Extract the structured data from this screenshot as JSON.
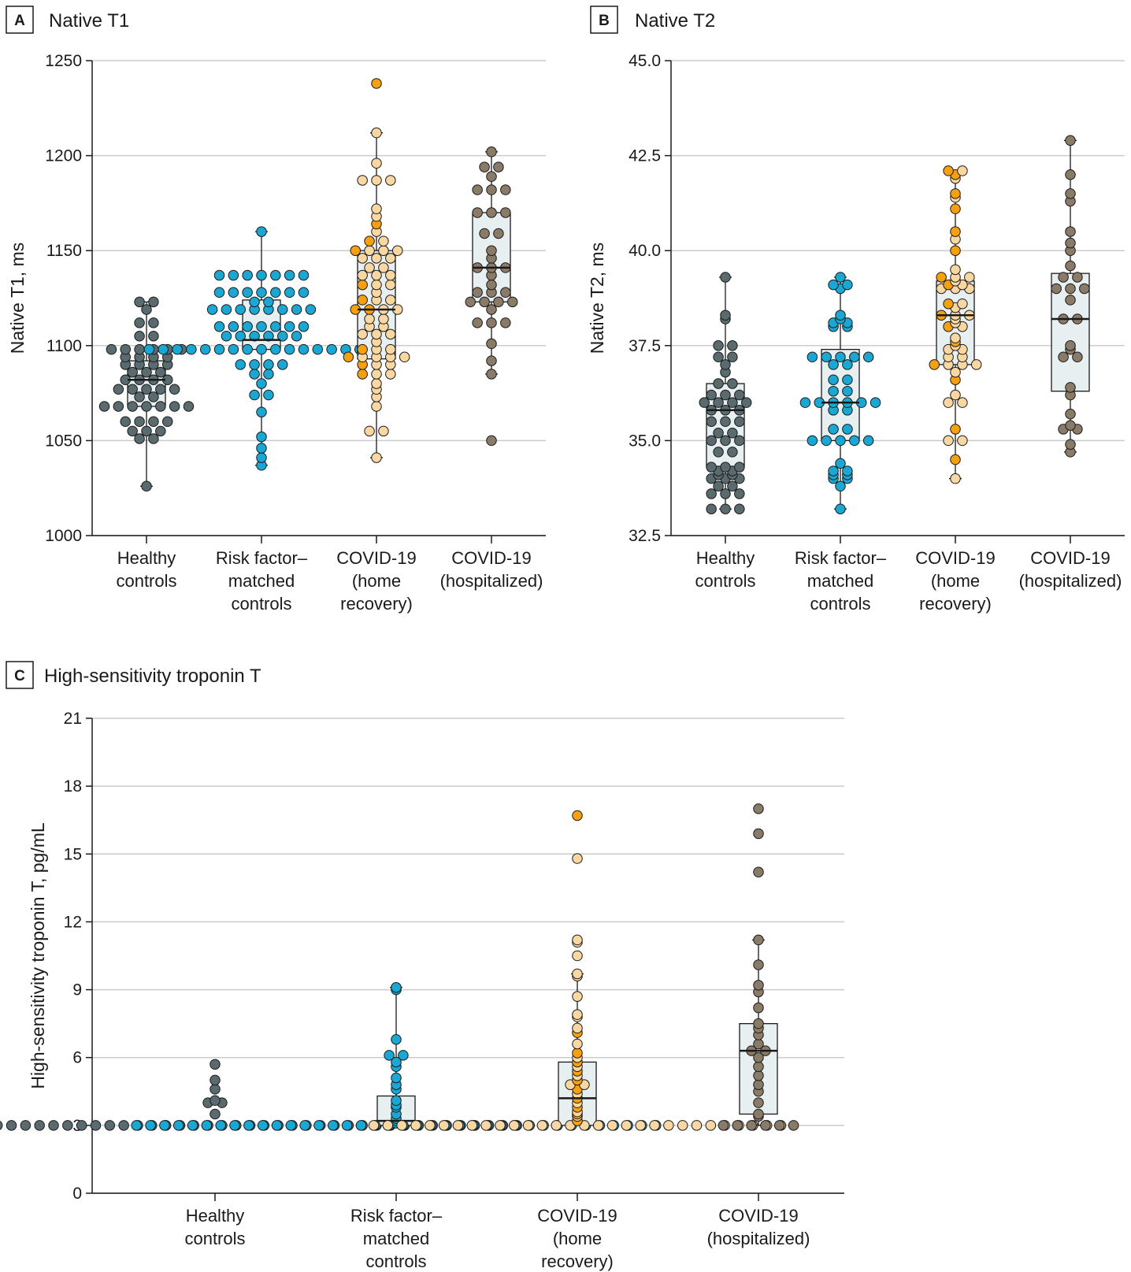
{
  "figure": {
    "colors": {
      "healthy": "#5a6b70",
      "risk": "#1aa7d4",
      "home_dark": "#f5a00f",
      "home_light": "#f8d7a2",
      "hospital": "#8a7a68",
      "box_fill": "#e7eff1",
      "grid": "#cccccc"
    }
  },
  "chart_data": [
    {
      "id": "A",
      "type": "box-dot",
      "letter": "A",
      "title": "Native T1",
      "xlabel": "",
      "ylabel": "Native T1, ms",
      "ylim": [
        1000,
        1250
      ],
      "yticks": [
        1000,
        1050,
        1100,
        1150,
        1200,
        1250
      ],
      "ytick_labels": [
        "1000",
        "1050",
        "1100",
        "1150",
        "1200",
        "1250"
      ],
      "grid": true,
      "categories": [
        {
          "lines": [
            "Healthy",
            "controls"
          ]
        },
        {
          "lines": [
            "Risk factor–",
            "matched",
            "controls"
          ]
        },
        {
          "lines": [
            "COVID-19",
            "(home",
            "recovery)"
          ]
        },
        {
          "lines": [
            "COVID-19",
            "(hospitalized)"
          ]
        }
      ],
      "series": [
        {
          "name": "Healthy controls",
          "color": "healthy",
          "box": {
            "q1": 1068,
            "median": 1082,
            "q3": 1092,
            "whisker_low": 1026,
            "whisker_high": 1123
          },
          "values": [
            1026,
            1051,
            1051,
            1055,
            1055,
            1055,
            1060,
            1060,
            1060,
            1060,
            1068,
            1068,
            1068,
            1068,
            1068,
            1068,
            1068,
            1073,
            1073,
            1077,
            1077,
            1077,
            1077,
            1077,
            1082,
            1082,
            1082,
            1082,
            1086,
            1086,
            1086,
            1090,
            1090,
            1090,
            1090,
            1094,
            1094,
            1094,
            1094,
            1098,
            1098,
            1098,
            1098,
            1098,
            1098,
            1105,
            1105,
            1112,
            1112,
            1119,
            1123,
            1123
          ]
        },
        {
          "name": "Risk factor–matched controls",
          "color": "risk",
          "box": {
            "q1": 1098,
            "median": 1103,
            "q3": 1124,
            "whisker_low": 1037,
            "whisker_high": 1160
          },
          "values": [
            1037,
            1041,
            1046,
            1052,
            1065,
            1074,
            1074,
            1080,
            1085,
            1085,
            1090,
            1090,
            1090,
            1090,
            1098,
            1098,
            1098,
            1098,
            1098,
            1098,
            1098,
            1098,
            1098,
            1098,
            1098,
            1098,
            1098,
            1098,
            1098,
            1098,
            1098,
            1105,
            1105,
            1105,
            1105,
            1105,
            1105,
            1110,
            1110,
            1110,
            1110,
            1110,
            1110,
            1110,
            1119,
            1119,
            1119,
            1119,
            1119,
            1119,
            1119,
            1119,
            1123,
            1123,
            1128,
            1128,
            1128,
            1128,
            1128,
            1128,
            1128,
            1137,
            1137,
            1137,
            1137,
            1137,
            1137,
            1137,
            1160
          ]
        },
        {
          "name": "COVID-19 (home recovery)",
          "color": "home_light",
          "color_alt": "home_dark",
          "box": {
            "q1": 1093,
            "median": 1119,
            "q3": 1150,
            "whisker_low": 1041,
            "whisker_high": 1212
          },
          "values": [
            1041,
            1055,
            1055,
            1068,
            1073,
            1077,
            1080,
            1085,
            1085,
            1085,
            1090,
            1090,
            1090,
            1094,
            1094,
            1094,
            1094,
            1094,
            1098,
            1098,
            1098,
            1102,
            1106,
            1106,
            1106,
            1110,
            1110,
            1114,
            1114,
            1119,
            1119,
            1119,
            1119,
            1124,
            1124,
            1124,
            1128,
            1132,
            1132,
            1132,
            1137,
            1137,
            1137,
            1141,
            1141,
            1146,
            1146,
            1146,
            1150,
            1150,
            1150,
            1150,
            1155,
            1155,
            1160,
            1164,
            1168,
            1172,
            1187,
            1187,
            1187,
            1196,
            1212,
            1238
          ],
          "dark_values": [
            1085,
            1090,
            1094,
            1098,
            1119,
            1119,
            1124,
            1132,
            1150,
            1155,
            1164,
            1238
          ]
        },
        {
          "name": "COVID-19 (hospitalized)",
          "color": "hospital",
          "box": {
            "q1": 1123,
            "median": 1141,
            "q3": 1170,
            "whisker_low": 1085,
            "whisker_high": 1202
          },
          "values": [
            1050,
            1085,
            1092,
            1101,
            1112,
            1112,
            1112,
            1119,
            1123,
            1123,
            1123,
            1123,
            1128,
            1128,
            1128,
            1132,
            1137,
            1141,
            1141,
            1141,
            1146,
            1150,
            1159,
            1159,
            1170,
            1170,
            1170,
            1182,
            1182,
            1182,
            1189,
            1194,
            1194,
            1202
          ]
        }
      ]
    },
    {
      "id": "B",
      "type": "box-dot",
      "letter": "B",
      "title": "Native T2",
      "xlabel": "",
      "ylabel": "Native T2, ms",
      "ylim": [
        32.5,
        45.0
      ],
      "yticks": [
        32.5,
        35.0,
        37.5,
        40.0,
        42.5,
        45.0
      ],
      "ytick_labels": [
        "32.5",
        "35.0",
        "37.5",
        "40.0",
        "42.5",
        "45.0"
      ],
      "grid": true,
      "categories": [
        {
          "lines": [
            "Healthy",
            "controls"
          ]
        },
        {
          "lines": [
            "Risk factor–",
            "matched",
            "controls"
          ]
        },
        {
          "lines": [
            "COVID-19",
            "(home",
            "recovery)"
          ]
        },
        {
          "lines": [
            "COVID-19",
            "(hospitalized)"
          ]
        }
      ],
      "series": [
        {
          "name": "Healthy controls",
          "color": "healthy",
          "box": {
            "q1": 34.3,
            "median": 35.8,
            "q3": 36.5,
            "whisker_low": 33.2,
            "whisker_high": 39.3
          },
          "values": [
            33.2,
            33.2,
            33.2,
            33.6,
            33.6,
            33.6,
            33.8,
            33.8,
            34.0,
            34.0,
            34.0,
            34.1,
            34.1,
            34.2,
            34.2,
            34.3,
            34.3,
            34.3,
            34.7,
            34.7,
            35.0,
            35.0,
            35.0,
            35.2,
            35.2,
            35.5,
            35.5,
            35.5,
            35.8,
            35.8,
            35.8,
            36.0,
            36.0,
            36.0,
            36.0,
            36.2,
            36.2,
            36.2,
            36.5,
            36.5,
            36.8,
            37.0,
            37.2,
            37.2,
            37.5,
            37.5,
            38.2,
            38.3,
            39.3
          ]
        },
        {
          "name": "Risk factor–matched controls",
          "color": "risk",
          "box": {
            "q1": 35.0,
            "median": 36.0,
            "q3": 37.4,
            "whisker_low": 33.2,
            "whisker_high": 39.3
          },
          "values": [
            33.2,
            33.8,
            34.0,
            34.0,
            34.1,
            34.1,
            34.2,
            34.2,
            34.4,
            35.0,
            35.0,
            35.0,
            35.0,
            35.0,
            35.3,
            35.3,
            35.8,
            35.8,
            36.0,
            36.0,
            36.0,
            36.0,
            36.0,
            36.0,
            36.3,
            36.3,
            36.6,
            36.6,
            37.0,
            37.0,
            37.2,
            37.2,
            37.2,
            37.2,
            37.2,
            38.0,
            38.0,
            38.1,
            38.1,
            38.2,
            38.3,
            39.0,
            39.1,
            39.1,
            39.3
          ]
        },
        {
          "name": "COVID-19 (home recovery)",
          "color": "home_light",
          "color_alt": "home_dark",
          "box": {
            "q1": 37.0,
            "median": 38.3,
            "q3": 39.2,
            "whisker_low": 34.0,
            "whisker_high": 42.1
          },
          "values": [
            34.0,
            34.5,
            35.0,
            35.0,
            35.3,
            36.0,
            36.0,
            36.2,
            36.6,
            36.8,
            37.0,
            37.0,
            37.0,
            37.0,
            37.2,
            37.2,
            37.4,
            37.4,
            37.5,
            37.6,
            37.7,
            38.0,
            38.0,
            38.1,
            38.2,
            38.3,
            38.3,
            38.3,
            38.5,
            38.6,
            38.6,
            39.0,
            39.0,
            39.0,
            39.1,
            39.1,
            39.2,
            39.3,
            39.3,
            39.3,
            39.5,
            40.0,
            40.3,
            40.5,
            41.1,
            41.4,
            41.5,
            41.9,
            42.0,
            42.1,
            42.1
          ],
          "dark_values": [
            34.5,
            35.3,
            36.6,
            37.0,
            37.6,
            38.0,
            38.3,
            38.6,
            39.1,
            39.3,
            40.0,
            40.5,
            41.1,
            41.5,
            42.0,
            42.1
          ]
        },
        {
          "name": "COVID-19 (hospitalized)",
          "color": "hospital",
          "box": {
            "q1": 36.3,
            "median": 38.2,
            "q3": 39.4,
            "whisker_low": 34.7,
            "whisker_high": 42.9
          },
          "values": [
            34.7,
            34.9,
            35.3,
            35.3,
            35.4,
            35.7,
            36.2,
            36.4,
            37.2,
            37.2,
            37.4,
            37.5,
            38.2,
            38.2,
            38.7,
            39.0,
            39.0,
            39.0,
            39.3,
            39.3,
            39.6,
            40.0,
            40.2,
            40.5,
            41.3,
            41.5,
            42.0,
            42.9
          ]
        }
      ]
    },
    {
      "id": "C",
      "type": "box-dot",
      "letter": "C",
      "title": "High-sensitivity troponin T",
      "xlabel": "",
      "ylabel": "High-sensitivity troponin T, pg/mL",
      "ylim": [
        0,
        21
      ],
      "yticks": [
        0,
        3,
        6,
        9,
        12,
        15,
        18,
        21
      ],
      "ytick_labels": [
        "0",
        "3",
        "6",
        "9",
        "12",
        "15",
        "18",
        "21"
      ],
      "grid": true,
      "categories": [
        {
          "lines": [
            "Healthy",
            "controls"
          ]
        },
        {
          "lines": [
            "Risk factor–",
            "matched",
            "controls"
          ]
        },
        {
          "lines": [
            "COVID-19",
            "(home",
            "recovery)"
          ]
        },
        {
          "lines": [
            "COVID-19",
            "(hospitalized)"
          ]
        }
      ],
      "series": [
        {
          "name": "Healthy controls",
          "color": "healthy",
          "box": null,
          "values": [
            3,
            3,
            3,
            3,
            3,
            3,
            3,
            3,
            3,
            3,
            3,
            3,
            3,
            3,
            3,
            3,
            3,
            3,
            3,
            3,
            3,
            3,
            3,
            3,
            3,
            3,
            3,
            3,
            3,
            3,
            3,
            3,
            3,
            3,
            3,
            3,
            3,
            3,
            3,
            3,
            3,
            3,
            3,
            3,
            3.5,
            4.0,
            4.0,
            4.1,
            4.6,
            5.0,
            5.7
          ]
        },
        {
          "name": "Risk factor–matched controls",
          "color": "risk",
          "box": {
            "q1": 3.0,
            "median": 3.2,
            "q3": 4.3,
            "whisker_low": 3.0,
            "whisker_high": 9.1
          },
          "values": [
            3,
            3,
            3,
            3,
            3,
            3,
            3,
            3,
            3,
            3,
            3,
            3,
            3,
            3,
            3,
            3,
            3,
            3,
            3,
            3,
            3,
            3,
            3,
            3,
            3,
            3,
            3,
            3,
            3,
            3,
            3,
            3,
            3,
            3,
            3,
            3,
            3,
            3,
            3.1,
            3.2,
            3.3,
            3.5,
            3.8,
            3.9,
            4.1,
            4.6,
            4.8,
            5.1,
            5.6,
            5.8,
            6.1,
            6.1,
            6.8,
            9.0,
            9.1
          ]
        },
        {
          "name": "COVID-19 (home recovery)",
          "color": "home_light",
          "color_alt": "home_dark",
          "box": {
            "q1": 3.0,
            "median": 4.2,
            "q3": 5.8,
            "whisker_low": 3.0,
            "whisker_high": 9.7
          },
          "values": [
            3,
            3,
            3,
            3,
            3,
            3,
            3,
            3,
            3,
            3,
            3,
            3,
            3,
            3,
            3,
            3,
            3,
            3,
            3,
            3,
            3,
            3,
            3,
            3,
            3,
            3,
            3,
            3,
            3,
            3,
            3.2,
            3.4,
            3.5,
            3.6,
            3.8,
            4.0,
            4.2,
            4.4,
            4.6,
            4.8,
            4.8,
            5.0,
            5.2,
            5.4,
            5.6,
            5.8,
            6.0,
            6.2,
            6.6,
            7.1,
            7.3,
            7.8,
            7.9,
            8.7,
            9.6,
            9.7,
            10.5,
            11.1,
            11.2,
            14.8,
            16.7
          ],
          "dark_values": [
            3.2,
            3.5,
            3.8,
            4.2,
            4.6,
            5.0,
            5.4,
            5.8,
            6.2,
            7.1,
            16.7
          ]
        },
        {
          "name": "COVID-19 (hospitalized)",
          "color": "hospital",
          "box": {
            "q1": 3.5,
            "median": 6.3,
            "q3": 7.5,
            "whisker_low": 3.0,
            "whisker_high": 11.2
          },
          "values": [
            3,
            3,
            3,
            3,
            3,
            3,
            3.4,
            3.5,
            4.0,
            4.5,
            4.8,
            5.2,
            5.6,
            6.0,
            6.3,
            6.3,
            6.6,
            7.0,
            7.3,
            7.5,
            8.2,
            8.9,
            9.2,
            10.1,
            11.2,
            14.2,
            15.9,
            17.0
          ]
        }
      ]
    }
  ]
}
